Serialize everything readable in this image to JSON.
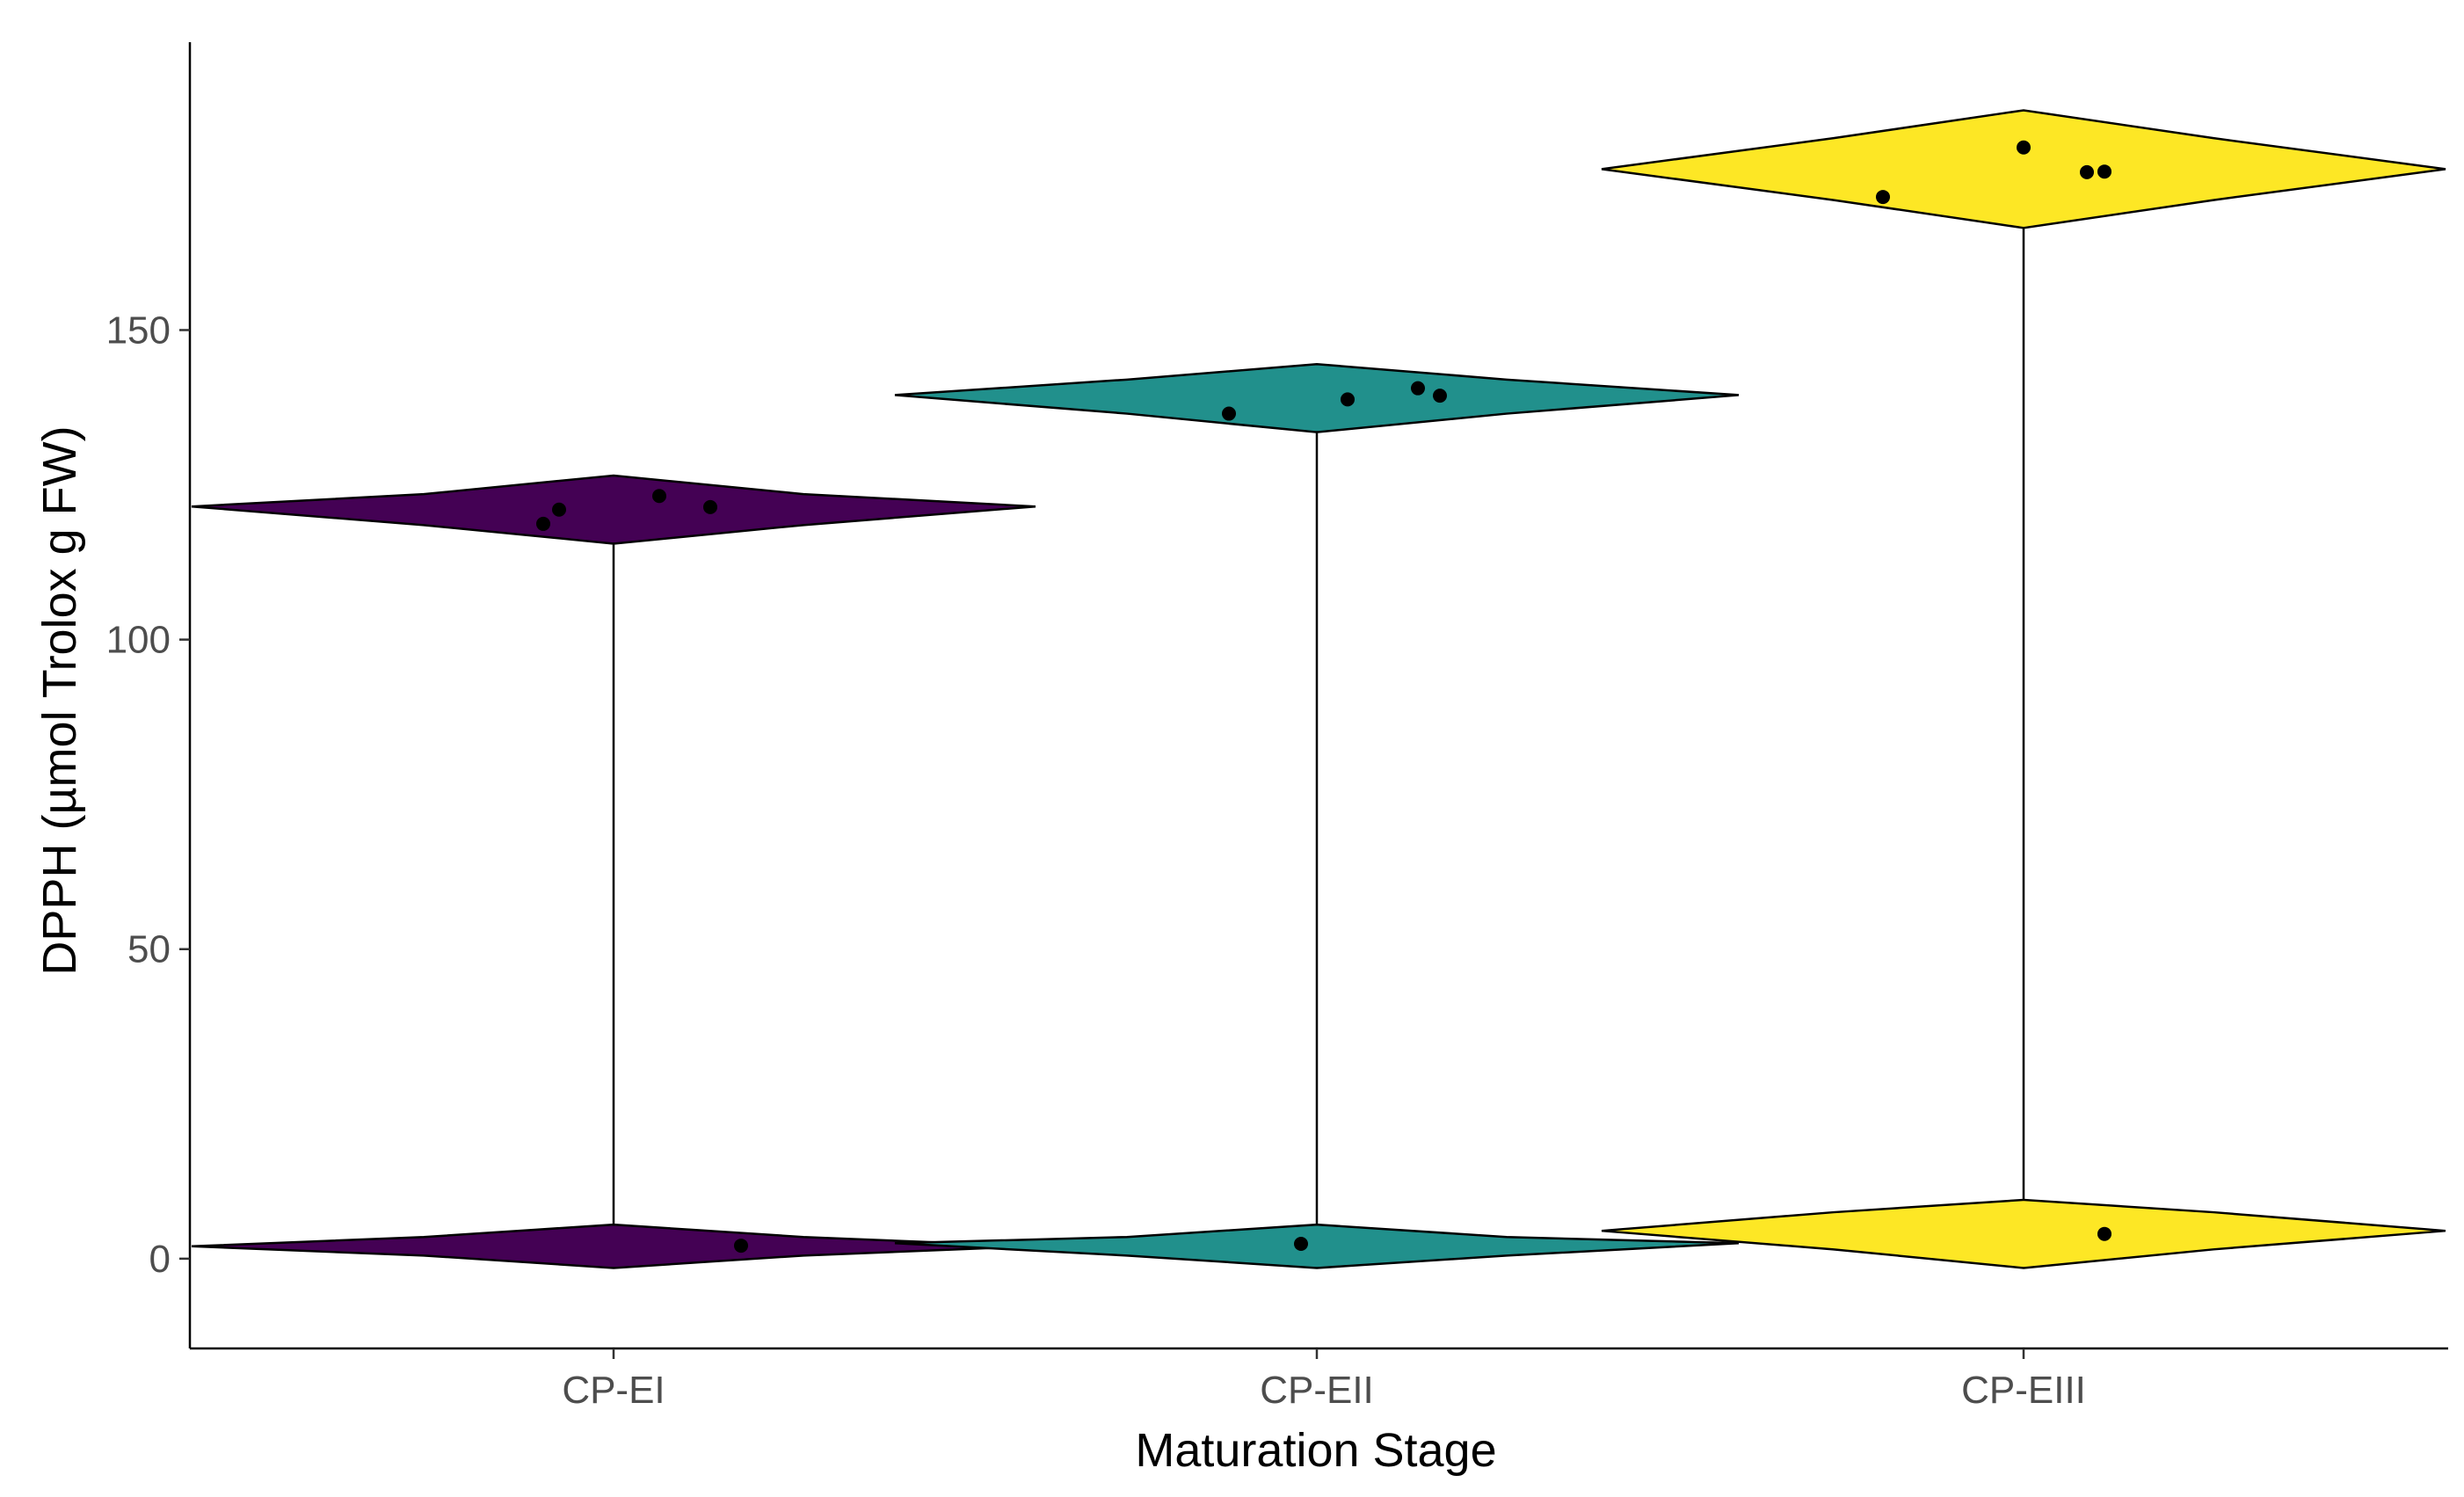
{
  "chart_data": {
    "type": "violin",
    "title": "",
    "xlabel": "Maturation Stage",
    "ylabel": "DPPH (µmol Trolox g FW)",
    "ylim": [
      -14.5,
      196.5
    ],
    "yticks": [
      0,
      50,
      100,
      150
    ],
    "grid": false,
    "categories": [
      "CP-EI",
      "CP-EII",
      "CP-EIII"
    ],
    "series": [
      {
        "name": "CP-EI",
        "color": "#440154",
        "values": [
          118.7,
          121.0,
          123.2,
          121.4,
          2.1
        ],
        "density": [
          [
            -1.5,
            0.0
          ],
          [
            0.5,
            0.45
          ],
          [
            2.0,
            1.0
          ],
          [
            3.5,
            0.45
          ],
          [
            5.5,
            0.0
          ],
          [
            115.5,
            0.0
          ],
          [
            118.5,
            0.45
          ],
          [
            121.5,
            1.0
          ],
          [
            123.5,
            0.45
          ],
          [
            126.5,
            0.0
          ]
        ]
      },
      {
        "name": "CP-EII",
        "color": "#21908C",
        "values": [
          136.5,
          138.8,
          140.6,
          139.4,
          2.4
        ],
        "density": [
          [
            -1.5,
            0.0
          ],
          [
            0.5,
            0.45
          ],
          [
            2.5,
            1.0
          ],
          [
            3.5,
            0.45
          ],
          [
            5.5,
            0.0
          ],
          [
            133.5,
            0.0
          ],
          [
            136.5,
            0.45
          ],
          [
            139.5,
            1.0
          ],
          [
            142.0,
            0.45
          ],
          [
            144.5,
            0.0
          ]
        ]
      },
      {
        "name": "CP-EIII",
        "color": "#FDE725",
        "values": [
          171.5,
          179.5,
          175.5,
          175.6,
          4.0
        ],
        "density": [
          [
            -1.5,
            0.0
          ],
          [
            1.5,
            0.45
          ],
          [
            4.5,
            1.0
          ],
          [
            7.5,
            0.45
          ],
          [
            9.5,
            0.0
          ],
          [
            166.5,
            0.0
          ],
          [
            171.0,
            0.45
          ],
          [
            176.0,
            1.0
          ],
          [
            181.0,
            0.45
          ],
          [
            185.5,
            0.0
          ]
        ]
      }
    ]
  }
}
